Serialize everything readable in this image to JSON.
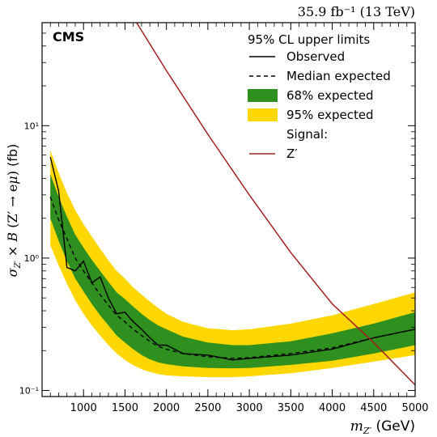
{
  "chart_data": {
    "type": "area",
    "lumi_label": "35.9 fb⁻¹ (13 TeV)",
    "experiment_label": "CMS",
    "xlabel": "m_Z′ (GeV)",
    "ylabel": "σ_Z′ × B (Z′ → eμ) (fb)",
    "xlim": [
      500,
      5000
    ],
    "ylim": [
      0.09,
      60
    ],
    "yscale": "log",
    "x_ticks": [
      1000,
      1500,
      2000,
      2500,
      3000,
      3500,
      4000,
      4500,
      5000
    ],
    "y_ticks": [
      {
        "value": 0.1,
        "label": "10⁻¹"
      },
      {
        "value": 1,
        "label": "10⁰"
      },
      {
        "value": 10,
        "label": "10¹"
      }
    ],
    "legend": {
      "title": "95% CL upper limits",
      "placement": "top-right",
      "entries": [
        {
          "label": "Observed",
          "style": "solid-line",
          "color": "#000000"
        },
        {
          "label": "Median expected",
          "style": "dashed-line",
          "color": "#000000"
        },
        {
          "label": "68% expected",
          "style": "box",
          "color": "#2f8f1f"
        },
        {
          "label": "95% expected",
          "style": "box",
          "color": "#ffd700"
        },
        {
          "label": "Signal:",
          "style": "none"
        },
        {
          "label": "Z′",
          "style": "solid-line",
          "color": "#a52020"
        }
      ]
    },
    "series": [
      {
        "name": "Observed",
        "color": "#000000",
        "x": [
          600,
          700,
          800,
          900,
          1000,
          1100,
          1200,
          1300,
          1400,
          1500,
          1600,
          1700,
          1800,
          1900,
          2000,
          2200,
          2500,
          2800,
          3000,
          3500,
          4000,
          4500,
          5000
        ],
        "y": [
          5.8,
          3.2,
          0.85,
          0.8,
          0.95,
          0.65,
          0.72,
          0.5,
          0.38,
          0.39,
          0.33,
          0.29,
          0.25,
          0.22,
          0.22,
          0.19,
          0.185,
          0.17,
          0.175,
          0.185,
          0.205,
          0.25,
          0.29
        ]
      },
      {
        "name": "Median expected",
        "color": "#000000",
        "x": [
          600,
          700,
          800,
          900,
          1000,
          1100,
          1200,
          1300,
          1400,
          1500,
          1600,
          1700,
          1800,
          1900,
          2000,
          2200,
          2500,
          2800,
          3000,
          3500,
          4000,
          4500,
          5000
        ],
        "y": [
          2.9,
          1.95,
          1.4,
          1.0,
          0.8,
          0.65,
          0.53,
          0.44,
          0.37,
          0.33,
          0.29,
          0.26,
          0.235,
          0.215,
          0.205,
          0.19,
          0.18,
          0.175,
          0.177,
          0.19,
          0.21,
          0.25,
          0.29
        ]
      },
      {
        "name": "68% expected",
        "color": "#2f8f1f",
        "x": [
          600,
          700,
          800,
          900,
          1000,
          1100,
          1200,
          1300,
          1400,
          1500,
          1600,
          1700,
          1800,
          1900,
          2000,
          2200,
          2500,
          2800,
          3000,
          3500,
          4000,
          4500,
          5000
        ],
        "lower": [
          2.0,
          1.35,
          0.95,
          0.7,
          0.56,
          0.45,
          0.37,
          0.31,
          0.26,
          0.23,
          0.205,
          0.185,
          0.172,
          0.163,
          0.158,
          0.152,
          0.148,
          0.147,
          0.148,
          0.156,
          0.168,
          0.19,
          0.22
        ],
        "upper": [
          4.3,
          2.9,
          2.05,
          1.5,
          1.2,
          0.97,
          0.8,
          0.66,
          0.55,
          0.49,
          0.43,
          0.38,
          0.34,
          0.31,
          0.29,
          0.255,
          0.23,
          0.22,
          0.22,
          0.235,
          0.27,
          0.32,
          0.39
        ]
      },
      {
        "name": "95% expected",
        "color": "#ffd700",
        "x": [
          600,
          700,
          800,
          900,
          1000,
          1100,
          1200,
          1300,
          1400,
          1500,
          1600,
          1700,
          1800,
          1900,
          2000,
          2200,
          2500,
          2800,
          3000,
          3500,
          4000,
          4500,
          5000
        ],
        "lower": [
          1.25,
          0.88,
          0.64,
          0.48,
          0.38,
          0.31,
          0.26,
          0.22,
          0.19,
          0.17,
          0.155,
          0.145,
          0.138,
          0.133,
          0.13,
          0.128,
          0.126,
          0.126,
          0.128,
          0.135,
          0.148,
          0.165,
          0.185
        ],
        "upper": [
          6.5,
          4.4,
          3.1,
          2.3,
          1.8,
          1.45,
          1.18,
          0.96,
          0.8,
          0.7,
          0.6,
          0.53,
          0.47,
          0.42,
          0.38,
          0.33,
          0.295,
          0.285,
          0.29,
          0.32,
          0.37,
          0.45,
          0.55
        ]
      },
      {
        "name": "Z′",
        "color": "#a52020",
        "x": [
          1640,
          2000,
          2500,
          3000,
          3500,
          4000,
          4500,
          5000
        ],
        "y": [
          60,
          26,
          8.6,
          3.0,
          1.1,
          0.45,
          0.23,
          0.11
        ]
      }
    ]
  }
}
